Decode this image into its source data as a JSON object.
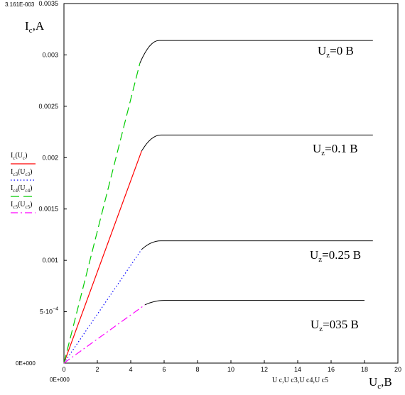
{
  "chart_data": {
    "type": "line",
    "ylabel": {
      "main": "I",
      "sub": "c",
      "unit": ",A"
    },
    "xlabel": {
      "main": "U",
      "sub": "c",
      "unit": ",B"
    },
    "xaxis_label": "U c,U c3,U c4,U c5",
    "xlim": [
      0,
      20
    ],
    "ylim": [
      0,
      0.0035
    ],
    "xticks": [
      0,
      2,
      4,
      6,
      8,
      10,
      12,
      14,
      16,
      18,
      20
    ],
    "yticks": [
      {
        "v": 0.0035,
        "label": "0.0035"
      },
      {
        "v": 0.003,
        "label": "0.003"
      },
      {
        "v": 0.0025,
        "label": "0.0025"
      },
      {
        "v": 0.002,
        "label": "0.002"
      },
      {
        "v": 0.0015,
        "label": "0.0015"
      },
      {
        "v": 0.001,
        "label": "0.001"
      },
      {
        "v": 0.0005,
        "label": "5·10",
        "exp": "−4"
      }
    ],
    "corner_labels": {
      "ymax": "3.161E-003",
      "ymin": "0E+000",
      "xmin": "0E+000"
    },
    "series": [
      {
        "legend_main": "I",
        "legend_sub": "c",
        "legend_arg": "U",
        "legend_argsub": "c",
        "color": "#ff0000",
        "dash": "",
        "saturation": 0.00222,
        "knee": 5.0,
        "end": 18.5,
        "annotation": "=0.1 B"
      },
      {
        "legend_main": "I",
        "legend_sub": "c3",
        "legend_arg": "U",
        "legend_argsub": "c3",
        "color": "#0000ff",
        "dash": "1.5,3",
        "saturation": 0.00119,
        "knee": 5.0,
        "end": 18.5,
        "annotation": "=0.25 B"
      },
      {
        "legend_main": "I",
        "legend_sub": "c4",
        "legend_arg": "U",
        "legend_argsub": "c4",
        "color": "#00cc00",
        "dash": "12,6",
        "saturation": 0.00314,
        "knee": 4.9,
        "end": 18.5,
        "annotation": "=0 B"
      },
      {
        "legend_main": "I",
        "legend_sub": "c5",
        "legend_arg": "U",
        "legend_argsub": "c5",
        "color": "#ff00ff",
        "dash": "10,4,2,4",
        "saturation": 0.00061,
        "knee": 5.2,
        "end": 18.0,
        "annotation": "=035 B"
      }
    ],
    "annotation_prefix": {
      "main": "U",
      "sub": "z"
    },
    "grid": false
  }
}
